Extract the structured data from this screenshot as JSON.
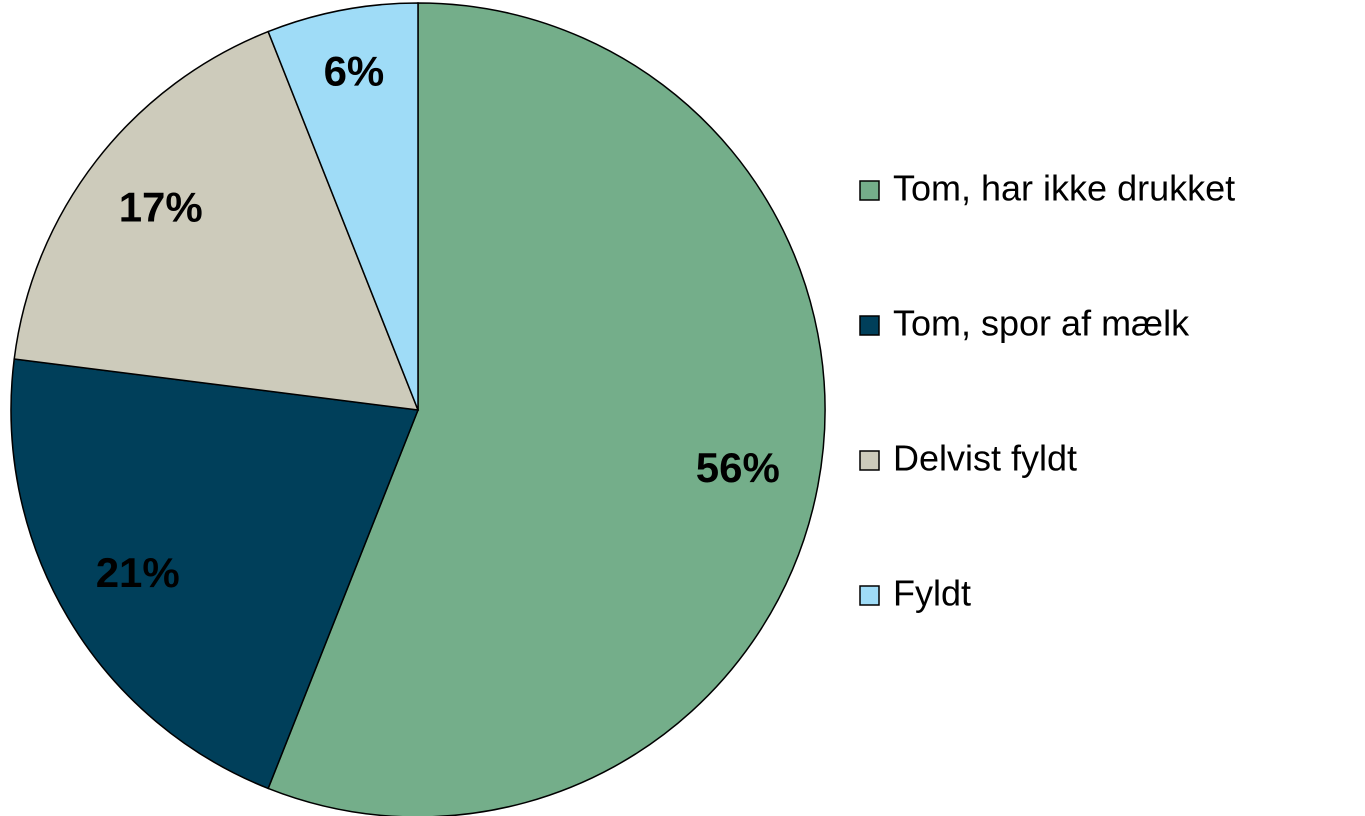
{
  "chart_data": {
    "type": "pie",
    "categories": [
      "Tom, har ikke drukket",
      "Tom, spor af mælk",
      "Delvist fyldt",
      "Fyldt"
    ],
    "values": [
      56,
      21,
      17,
      6
    ],
    "value_labels": [
      "56%",
      "21%",
      "17%",
      "6%"
    ],
    "colors": [
      "#74ae8a",
      "#003f5a",
      "#cdcbbb",
      "#9fdcf7"
    ],
    "legend": "right"
  }
}
